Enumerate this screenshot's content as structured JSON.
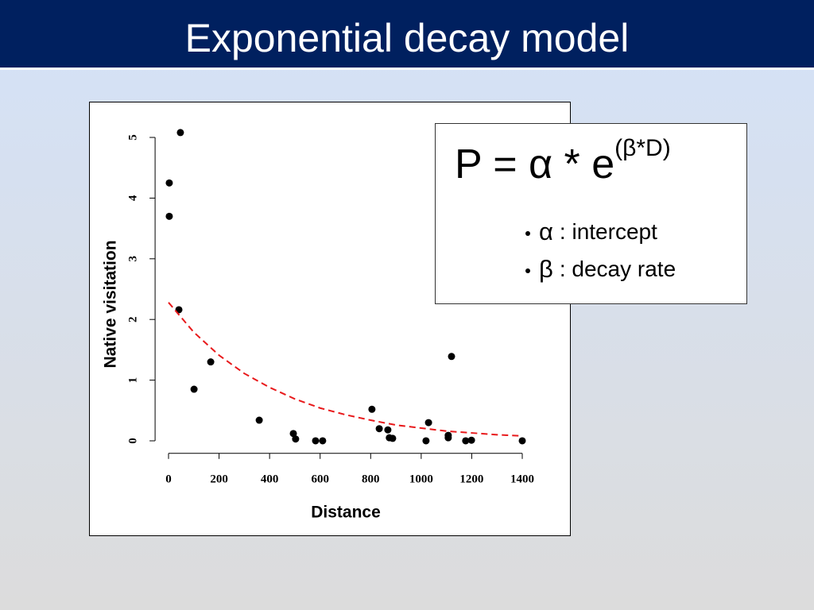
{
  "title": "Exponential decay model",
  "formula": {
    "main": "P = α * e",
    "exponent": "(β*D)",
    "bullets": [
      {
        "symbol": "α",
        "text": ": intercept"
      },
      {
        "symbol": "β",
        "text": ": decay rate"
      }
    ]
  },
  "chart_data": {
    "type": "scatter",
    "xlabel": "Distance",
    "ylabel": "Native visitation",
    "xlim": [
      -50,
      1450
    ],
    "ylim": [
      -0.22,
      5.3
    ],
    "xticks": [
      0,
      200,
      400,
      600,
      800,
      1000,
      1200,
      1400
    ],
    "yticks": [
      0,
      1,
      2,
      3,
      4,
      5
    ],
    "series": [
      {
        "type": "scatter",
        "color": "#000000",
        "x": [
          47,
          3,
          3,
          41,
          101,
          167,
          359,
          494,
          503,
          582,
          610,
          805,
          834,
          868,
          874,
          887,
          1019,
          1029,
          1107,
          1107,
          1120,
          1176,
          1199,
          1400
        ],
        "values": [
          5.08,
          4.25,
          3.7,
          2.16,
          0.85,
          1.3,
          0.34,
          0.12,
          0.03,
          0,
          0,
          0.52,
          0.2,
          0.18,
          0.05,
          0.04,
          0,
          0.3,
          0.09,
          0.05,
          1.39,
          0,
          0.01,
          0
        ]
      },
      {
        "type": "line",
        "color": "#e8191b",
        "dashed": true,
        "x": [
          0,
          100,
          200,
          300,
          400,
          500,
          600,
          700,
          800,
          900,
          1000,
          1100,
          1200,
          1300,
          1400
        ],
        "values": [
          2.28,
          1.79,
          1.41,
          1.11,
          0.88,
          0.69,
          0.54,
          0.43,
          0.34,
          0.26,
          0.21,
          0.16,
          0.13,
          0.1,
          0.08
        ]
      }
    ]
  }
}
